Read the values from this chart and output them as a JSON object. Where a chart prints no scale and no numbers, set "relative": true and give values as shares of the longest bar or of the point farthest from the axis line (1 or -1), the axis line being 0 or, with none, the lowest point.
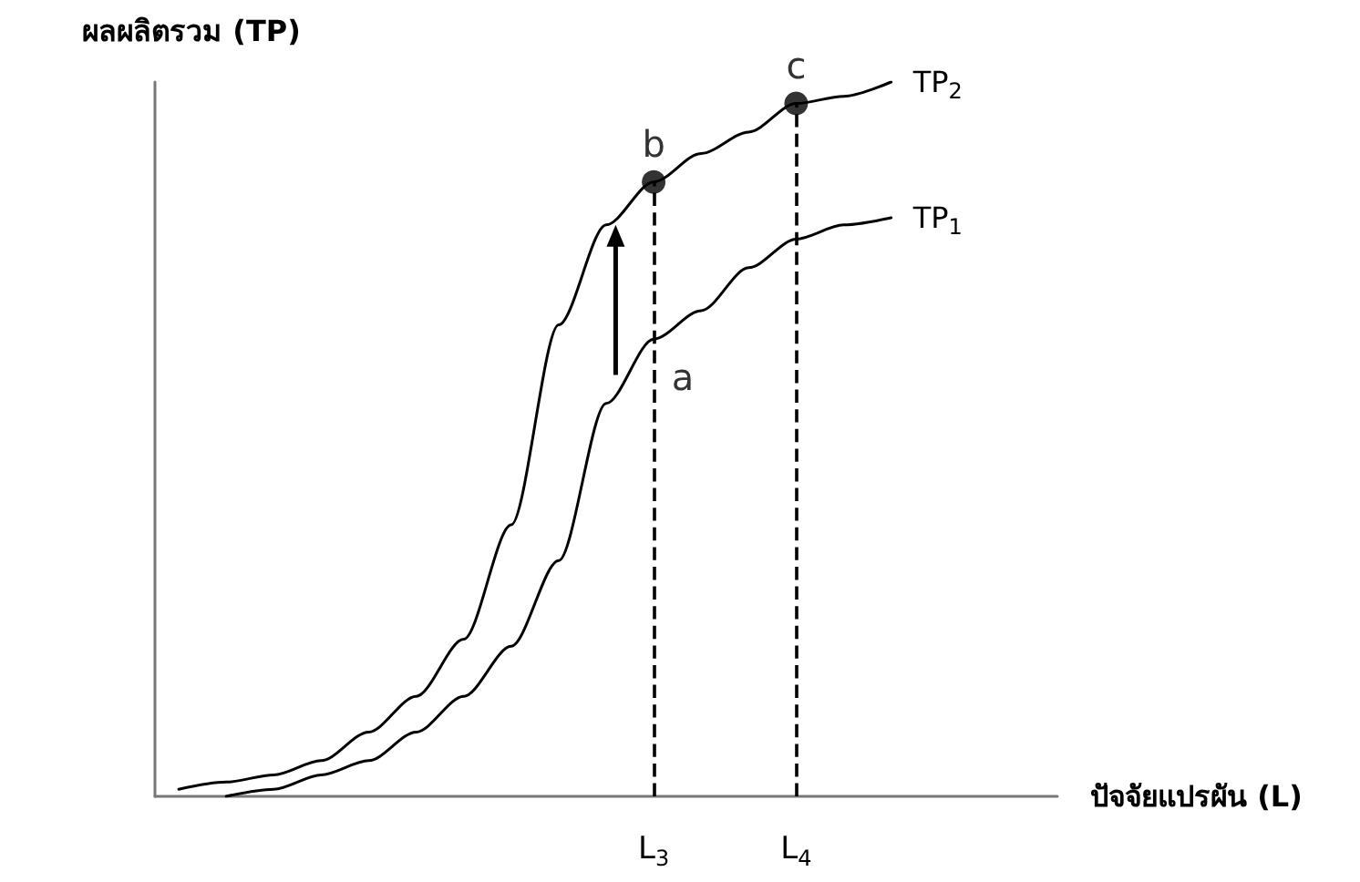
{
  "chart_data": {
    "type": "line",
    "relative": true,
    "xlabel": "ปัจจัยแปรผัน (L)",
    "ylabel": "ผลผลิตรวม (TP)",
    "grid": false,
    "legend": false,
    "marker": "none",
    "line_style": "solid",
    "categories": [
      null,
      null,
      null,
      null,
      null,
      null,
      null,
      null,
      null,
      null,
      "L$_{3}$",
      null,
      null,
      "L$_{4}$",
      null,
      null,
      null,
      null,
      null
    ],
    "series": [
      {
        "name": "TP$_{2}$",
        "color": "#000000",
        "values": [
          0.01,
          0.02,
          0.03,
          0.05,
          0.09,
          0.14,
          0.22,
          0.38,
          0.66,
          0.8,
          0.86,
          0.9,
          0.93,
          0.97,
          0.98,
          1.0,
          null,
          null,
          null
        ]
      },
      {
        "name": "TP$_{1}$",
        "color": "#000000",
        "values": [
          null,
          0.0,
          0.01,
          0.03,
          0.05,
          0.09,
          0.14,
          0.21,
          0.33,
          0.55,
          0.64,
          0.68,
          0.74,
          0.78,
          0.8,
          0.81,
          null,
          null,
          null
        ]
      },
      {
        "type": "scatter",
        "marker": "circle",
        "color": "#000000",
        "values": [
          null,
          null,
          null,
          null,
          null,
          null,
          null,
          null,
          null,
          null,
          0.86,
          null,
          null,
          0.97,
          null,
          null,
          null,
          null,
          null
        ]
      }
    ],
    "ref_lines": [
      {
        "axis": "x",
        "value": "L$_{3}$",
        "color": "#000000",
        "line_style": "dashed"
      },
      {
        "axis": "x",
        "value": "L$_{4}$",
        "color": "#000000",
        "line_style": "dashed"
      }
    ],
    "annotations": [
      {
        "text": "a",
        "x": "L$_{3}$",
        "y": 0.64
      },
      {
        "text": "b",
        "x": "L$_{3}$",
        "y": 0.86
      },
      {
        "text": "c",
        "x": "L$_{4}$",
        "y": 0.97
      }
    ]
  }
}
